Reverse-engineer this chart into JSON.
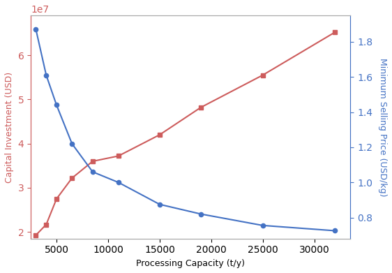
{
  "x": [
    3000,
    4000,
    5000,
    6500,
    8500,
    11000,
    15000,
    19000,
    25000,
    32000
  ],
  "capital_investment": [
    19300000.0,
    21700000.0,
    27500000.0,
    32200000.0,
    36000000.0,
    37200000.0,
    42000000.0,
    48200000.0,
    55500000.0,
    65200000.0
  ],
  "min_selling_price": [
    1.87,
    1.61,
    1.44,
    1.22,
    1.06,
    1.0,
    0.875,
    0.82,
    0.755,
    0.725
  ],
  "line_color_red": "#CD5C5C",
  "line_color_blue": "#4472C4",
  "ylabel_left": "Capital Investment (USD)",
  "ylabel_right": "Minimum Selling Price (USD/kg)",
  "xlabel": "Processing Capacity (t/y)",
  "ylim_left": [
    18500000.0,
    69000000.0
  ],
  "ylim_right": [
    0.68,
    1.95
  ],
  "xlim": [
    2500,
    33500
  ],
  "yticks_left": [
    20000000.0,
    30000000.0,
    40000000.0,
    50000000.0,
    60000000.0
  ],
  "yticks_right": [
    0.8,
    1.0,
    1.2,
    1.4,
    1.6,
    1.8
  ],
  "xticks": [
    5000,
    10000,
    15000,
    20000,
    25000,
    30000
  ],
  "figsize": [
    5.62,
    3.91
  ],
  "dpi": 100
}
